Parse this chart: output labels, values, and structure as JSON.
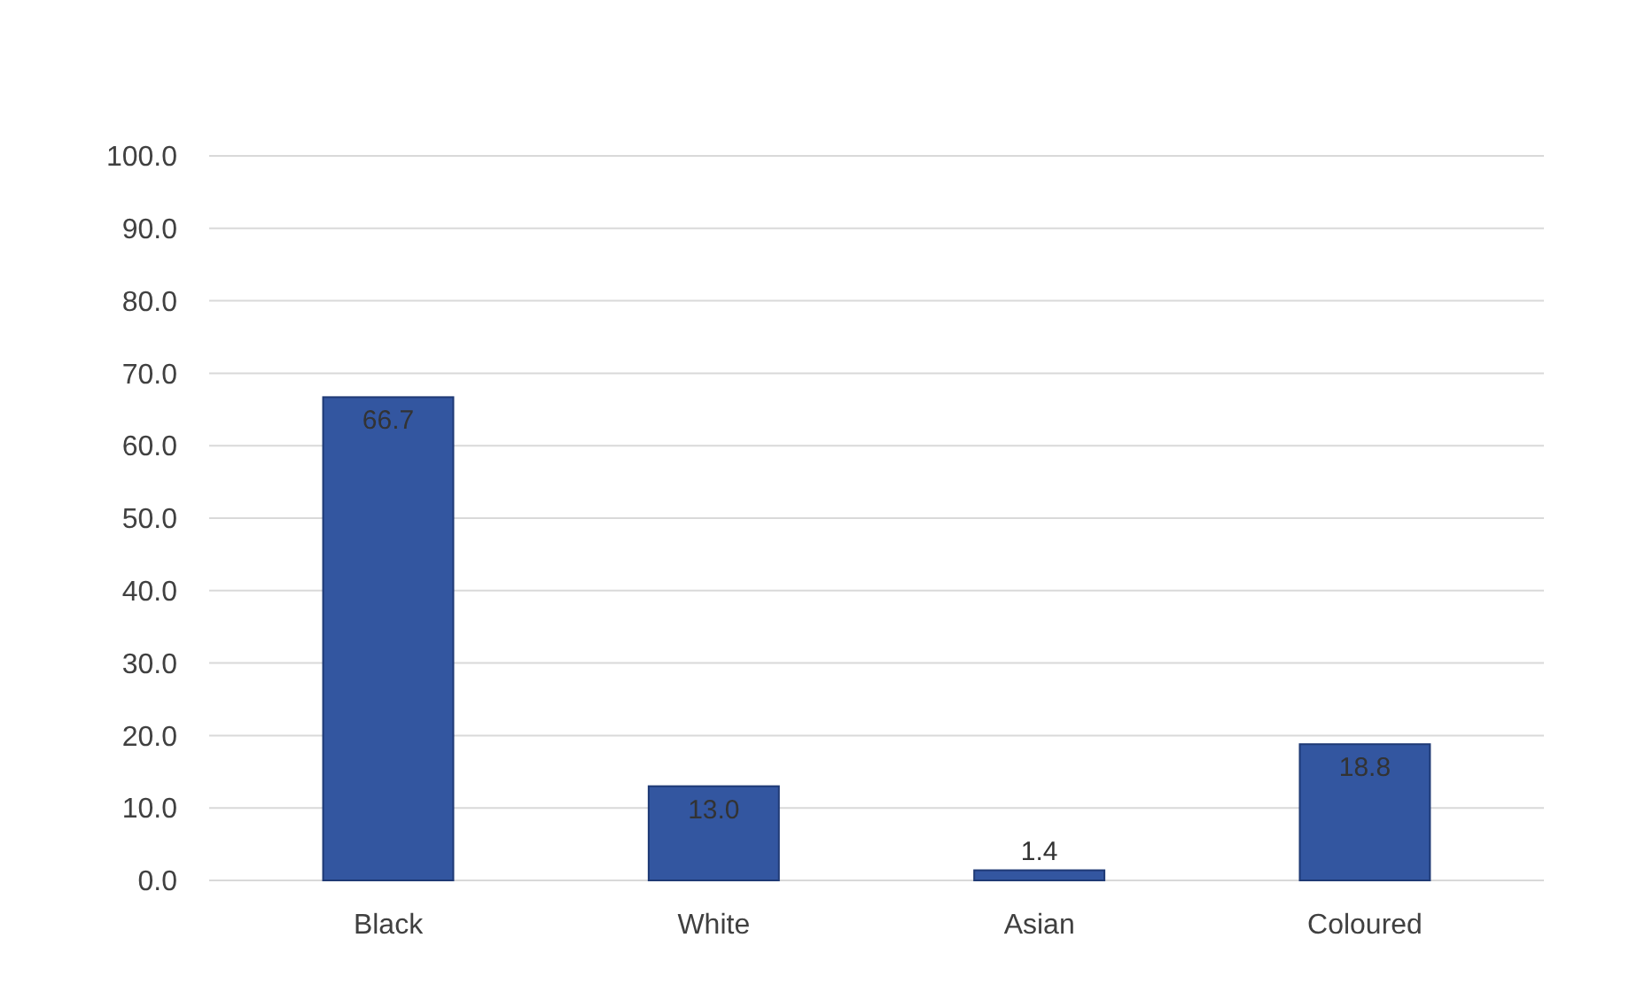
{
  "chart_data": {
    "type": "bar",
    "categories": [
      "Black",
      "White",
      "Asian",
      "Coloured"
    ],
    "values": [
      66.7,
      13.0,
      1.4,
      18.8
    ],
    "value_labels": [
      "66.7",
      "13.0",
      "1.4",
      "18.8"
    ],
    "color": "#3356a0",
    "ylim": [
      0,
      100
    ],
    "yticks": [
      {
        "value": 0,
        "label": "0.0"
      },
      {
        "value": 10,
        "label": "10.0"
      },
      {
        "value": 20,
        "label": "20.0"
      },
      {
        "value": 30,
        "label": "30.0"
      },
      {
        "value": 40,
        "label": "40.0"
      },
      {
        "value": 50,
        "label": "50.0"
      },
      {
        "value": 60,
        "label": "60.0"
      },
      {
        "value": 70,
        "label": "70.0"
      },
      {
        "value": 80,
        "label": "80.0"
      },
      {
        "value": 90,
        "label": "90.0"
      },
      {
        "value": 100,
        "label": "100.0"
      }
    ],
    "grid": "y"
  }
}
